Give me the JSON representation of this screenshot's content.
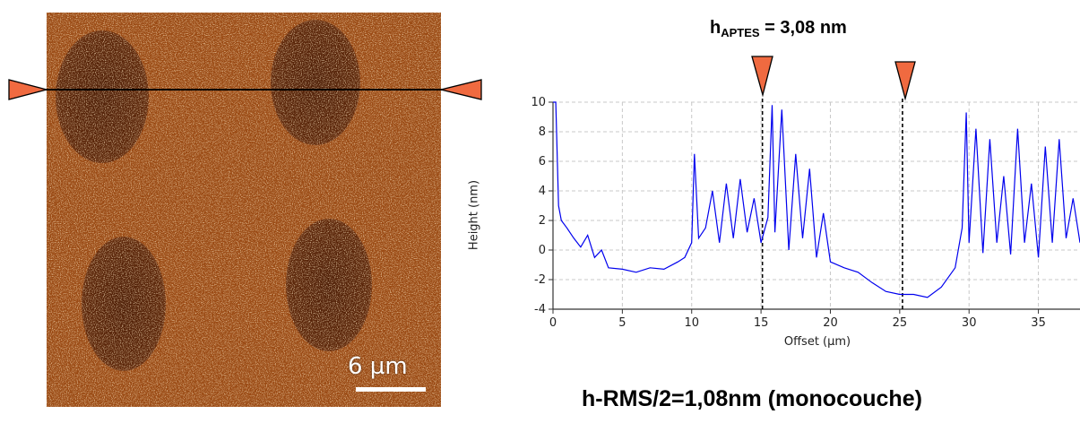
{
  "afm_image": {
    "scale_label": "6 µm",
    "colors": {
      "substrate": "#9a4a14",
      "dot": "#5a2408",
      "highlight": "#f0c070"
    }
  },
  "annotation": {
    "h_prefix": "h",
    "h_sub": "APTES",
    "h_value": " = 3,08 nm",
    "rms_text": "h-RMS/2=1,08nm (monocouche)",
    "marker_color": "#f06a40"
  },
  "chart_data": {
    "type": "line",
    "xlabel": "Offset (µm)",
    "ylabel": "Height (nm)",
    "xlim": [
      0,
      38
    ],
    "ylim": [
      -4,
      10
    ],
    "xticks": [
      0,
      5,
      10,
      15,
      20,
      25,
      30,
      35
    ],
    "yticks": [
      -4,
      -2,
      0,
      2,
      4,
      6,
      8,
      10
    ],
    "grid": true,
    "line_color": "#0000ee",
    "cursors_x": [
      15.1,
      25.2
    ],
    "series": [
      {
        "x": [
          0,
          0.2,
          0.4,
          0.6,
          1,
          1.5,
          2,
          2.5,
          3,
          3.5,
          4,
          5,
          6,
          7,
          8,
          9,
          9.5,
          10,
          10.2,
          10.5,
          11,
          11.5,
          12,
          12.5,
          13,
          13.5,
          14,
          14.5,
          15,
          15.5,
          15.8,
          16,
          16.5,
          17,
          17.5,
          18,
          18.5,
          19,
          19.5,
          20,
          21,
          22,
          23,
          24,
          25,
          26,
          27,
          28,
          29,
          29.5,
          29.8,
          30,
          30.5,
          31,
          31.5,
          32,
          32.5,
          33,
          33.5,
          34,
          34.5,
          35,
          35.5,
          36,
          36.5,
          37,
          37.5,
          38
        ],
        "y": [
          10,
          10,
          3,
          2,
          1.5,
          0.8,
          0.2,
          1,
          -0.5,
          0,
          -1.2,
          -1.3,
          -1.5,
          -1.2,
          -1.3,
          -0.8,
          -0.5,
          0.5,
          6.5,
          0.8,
          1.5,
          4,
          0.5,
          4.5,
          0.8,
          4.8,
          1.2,
          3.5,
          0.5,
          2.2,
          9.8,
          1.2,
          9.5,
          0,
          6.5,
          0.8,
          5.5,
          -0.5,
          2.5,
          -0.8,
          -1.2,
          -1.5,
          -2.2,
          -2.8,
          -3,
          -3,
          -3.2,
          -2.5,
          -1.2,
          1.5,
          9.3,
          0.5,
          8.2,
          -0.2,
          7.5,
          0.5,
          5,
          -0.3,
          8.2,
          0.5,
          4.5,
          -0.5,
          7,
          0.5,
          7.5,
          0.8,
          3.5,
          0.5
        ]
      }
    ]
  }
}
